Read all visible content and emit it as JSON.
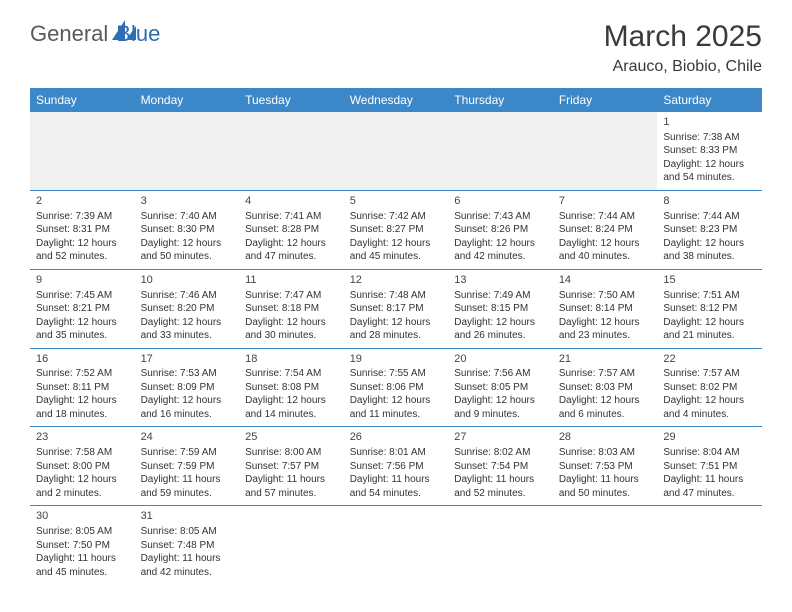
{
  "logo": {
    "general": "General",
    "blue": "Blue"
  },
  "title": "March 2025",
  "location": "Arauco, Biobio, Chile",
  "colors": {
    "header_bg": "#3b87c8",
    "header_text": "#ffffff",
    "border": "#3b87c8",
    "text": "#333333",
    "logo_gray": "#5a5a5a",
    "logo_blue": "#2d6db3"
  },
  "day_headers": [
    "Sunday",
    "Monday",
    "Tuesday",
    "Wednesday",
    "Thursday",
    "Friday",
    "Saturday"
  ],
  "weeks": [
    [
      null,
      null,
      null,
      null,
      null,
      null,
      {
        "n": "1",
        "sunrise": "Sunrise: 7:38 AM",
        "sunset": "Sunset: 8:33 PM",
        "day1": "Daylight: 12 hours",
        "day2": "and 54 minutes."
      }
    ],
    [
      {
        "n": "2",
        "sunrise": "Sunrise: 7:39 AM",
        "sunset": "Sunset: 8:31 PM",
        "day1": "Daylight: 12 hours",
        "day2": "and 52 minutes."
      },
      {
        "n": "3",
        "sunrise": "Sunrise: 7:40 AM",
        "sunset": "Sunset: 8:30 PM",
        "day1": "Daylight: 12 hours",
        "day2": "and 50 minutes."
      },
      {
        "n": "4",
        "sunrise": "Sunrise: 7:41 AM",
        "sunset": "Sunset: 8:28 PM",
        "day1": "Daylight: 12 hours",
        "day2": "and 47 minutes."
      },
      {
        "n": "5",
        "sunrise": "Sunrise: 7:42 AM",
        "sunset": "Sunset: 8:27 PM",
        "day1": "Daylight: 12 hours",
        "day2": "and 45 minutes."
      },
      {
        "n": "6",
        "sunrise": "Sunrise: 7:43 AM",
        "sunset": "Sunset: 8:26 PM",
        "day1": "Daylight: 12 hours",
        "day2": "and 42 minutes."
      },
      {
        "n": "7",
        "sunrise": "Sunrise: 7:44 AM",
        "sunset": "Sunset: 8:24 PM",
        "day1": "Daylight: 12 hours",
        "day2": "and 40 minutes."
      },
      {
        "n": "8",
        "sunrise": "Sunrise: 7:44 AM",
        "sunset": "Sunset: 8:23 PM",
        "day1": "Daylight: 12 hours",
        "day2": "and 38 minutes."
      }
    ],
    [
      {
        "n": "9",
        "sunrise": "Sunrise: 7:45 AM",
        "sunset": "Sunset: 8:21 PM",
        "day1": "Daylight: 12 hours",
        "day2": "and 35 minutes."
      },
      {
        "n": "10",
        "sunrise": "Sunrise: 7:46 AM",
        "sunset": "Sunset: 8:20 PM",
        "day1": "Daylight: 12 hours",
        "day2": "and 33 minutes."
      },
      {
        "n": "11",
        "sunrise": "Sunrise: 7:47 AM",
        "sunset": "Sunset: 8:18 PM",
        "day1": "Daylight: 12 hours",
        "day2": "and 30 minutes."
      },
      {
        "n": "12",
        "sunrise": "Sunrise: 7:48 AM",
        "sunset": "Sunset: 8:17 PM",
        "day1": "Daylight: 12 hours",
        "day2": "and 28 minutes."
      },
      {
        "n": "13",
        "sunrise": "Sunrise: 7:49 AM",
        "sunset": "Sunset: 8:15 PM",
        "day1": "Daylight: 12 hours",
        "day2": "and 26 minutes."
      },
      {
        "n": "14",
        "sunrise": "Sunrise: 7:50 AM",
        "sunset": "Sunset: 8:14 PM",
        "day1": "Daylight: 12 hours",
        "day2": "and 23 minutes."
      },
      {
        "n": "15",
        "sunrise": "Sunrise: 7:51 AM",
        "sunset": "Sunset: 8:12 PM",
        "day1": "Daylight: 12 hours",
        "day2": "and 21 minutes."
      }
    ],
    [
      {
        "n": "16",
        "sunrise": "Sunrise: 7:52 AM",
        "sunset": "Sunset: 8:11 PM",
        "day1": "Daylight: 12 hours",
        "day2": "and 18 minutes."
      },
      {
        "n": "17",
        "sunrise": "Sunrise: 7:53 AM",
        "sunset": "Sunset: 8:09 PM",
        "day1": "Daylight: 12 hours",
        "day2": "and 16 minutes."
      },
      {
        "n": "18",
        "sunrise": "Sunrise: 7:54 AM",
        "sunset": "Sunset: 8:08 PM",
        "day1": "Daylight: 12 hours",
        "day2": "and 14 minutes."
      },
      {
        "n": "19",
        "sunrise": "Sunrise: 7:55 AM",
        "sunset": "Sunset: 8:06 PM",
        "day1": "Daylight: 12 hours",
        "day2": "and 11 minutes."
      },
      {
        "n": "20",
        "sunrise": "Sunrise: 7:56 AM",
        "sunset": "Sunset: 8:05 PM",
        "day1": "Daylight: 12 hours",
        "day2": "and 9 minutes."
      },
      {
        "n": "21",
        "sunrise": "Sunrise: 7:57 AM",
        "sunset": "Sunset: 8:03 PM",
        "day1": "Daylight: 12 hours",
        "day2": "and 6 minutes."
      },
      {
        "n": "22",
        "sunrise": "Sunrise: 7:57 AM",
        "sunset": "Sunset: 8:02 PM",
        "day1": "Daylight: 12 hours",
        "day2": "and 4 minutes."
      }
    ],
    [
      {
        "n": "23",
        "sunrise": "Sunrise: 7:58 AM",
        "sunset": "Sunset: 8:00 PM",
        "day1": "Daylight: 12 hours",
        "day2": "and 2 minutes."
      },
      {
        "n": "24",
        "sunrise": "Sunrise: 7:59 AM",
        "sunset": "Sunset: 7:59 PM",
        "day1": "Daylight: 11 hours",
        "day2": "and 59 minutes."
      },
      {
        "n": "25",
        "sunrise": "Sunrise: 8:00 AM",
        "sunset": "Sunset: 7:57 PM",
        "day1": "Daylight: 11 hours",
        "day2": "and 57 minutes."
      },
      {
        "n": "26",
        "sunrise": "Sunrise: 8:01 AM",
        "sunset": "Sunset: 7:56 PM",
        "day1": "Daylight: 11 hours",
        "day2": "and 54 minutes."
      },
      {
        "n": "27",
        "sunrise": "Sunrise: 8:02 AM",
        "sunset": "Sunset: 7:54 PM",
        "day1": "Daylight: 11 hours",
        "day2": "and 52 minutes."
      },
      {
        "n": "28",
        "sunrise": "Sunrise: 8:03 AM",
        "sunset": "Sunset: 7:53 PM",
        "day1": "Daylight: 11 hours",
        "day2": "and 50 minutes."
      },
      {
        "n": "29",
        "sunrise": "Sunrise: 8:04 AM",
        "sunset": "Sunset: 7:51 PM",
        "day1": "Daylight: 11 hours",
        "day2": "and 47 minutes."
      }
    ],
    [
      {
        "n": "30",
        "sunrise": "Sunrise: 8:05 AM",
        "sunset": "Sunset: 7:50 PM",
        "day1": "Daylight: 11 hours",
        "day2": "and 45 minutes."
      },
      {
        "n": "31",
        "sunrise": "Sunrise: 8:05 AM",
        "sunset": "Sunset: 7:48 PM",
        "day1": "Daylight: 11 hours",
        "day2": "and 42 minutes."
      },
      null,
      null,
      null,
      null,
      null
    ]
  ]
}
